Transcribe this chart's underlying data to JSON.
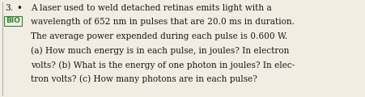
{
  "number": "3.",
  "bullet": "•",
  "bio_label": "BIO",
  "line1": "A laser used to weld detached retinas emits light with a",
  "line2": "wavelength of 652 nm in pulses that are 20.0 ms in duration.",
  "line3": "The average power expended during each pulse is 0.600 W.",
  "line4": "(a) How much energy is in each pulse, in joules? In electron",
  "line5": "volts? (b) What is the energy of one photon in joules? In elec-",
  "line6": "tron volts? (c) How many photons are in each pulse?",
  "bg_color": "#f2ede3",
  "text_color": "#1a1a1a",
  "bio_color": "#3a7d3a",
  "bio_border_color": "#3a7d3a",
  "left_border_color": "#aaaaaa",
  "font_size": 7.6,
  "bio_font_size": 6.5,
  "number_font_size": 7.6,
  "bullet_font_size": 8.5,
  "fig_width": 4.52,
  "fig_height": 1.2,
  "dpi": 100
}
